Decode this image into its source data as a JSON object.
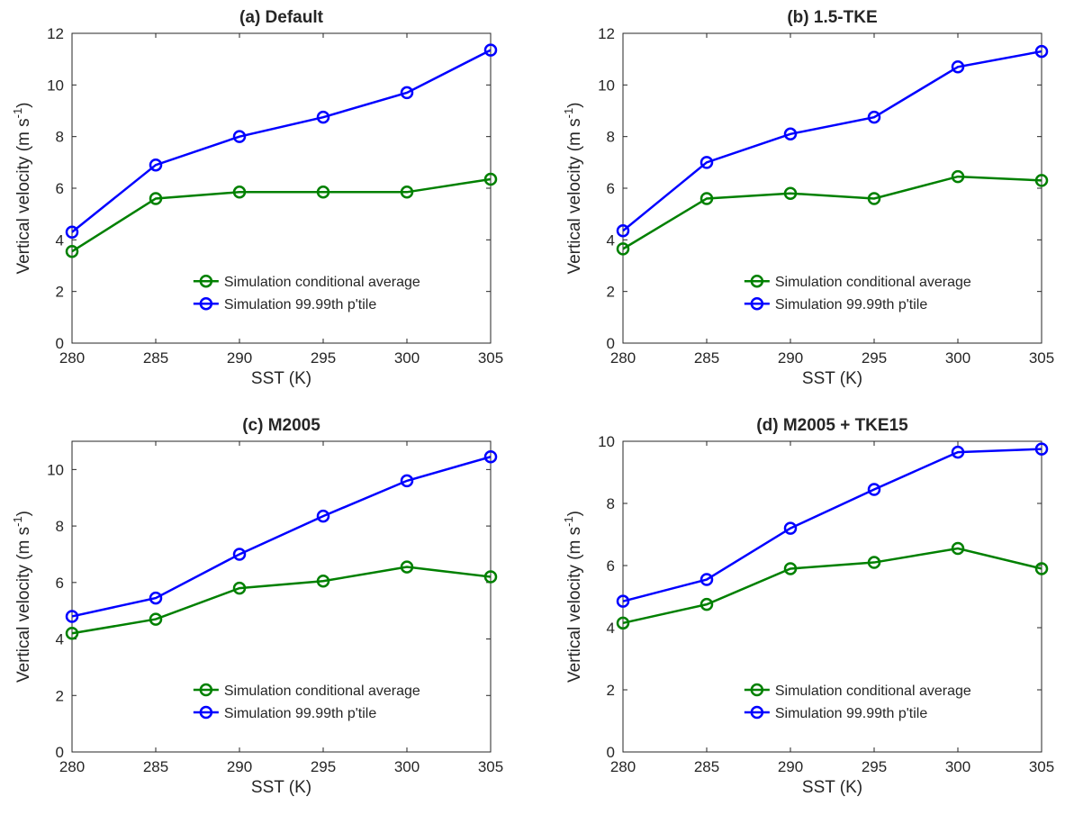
{
  "chart_data": [
    {
      "type": "line",
      "title": "(a) Default",
      "xlabel": "SST (K)",
      "ylabel": "Vertical velocity (m s",
      "ylabel_sup": "-1",
      "ylabel_tail": ")",
      "xlim": [
        280,
        305
      ],
      "ylim": [
        0,
        12
      ],
      "xticks": [
        280,
        285,
        290,
        295,
        300,
        305
      ],
      "yticks": [
        0,
        2,
        4,
        6,
        8,
        10,
        12
      ],
      "x": [
        280,
        285,
        290,
        295,
        300,
        305
      ],
      "series": [
        {
          "name": "Simulation conditional average",
          "color": "#008000",
          "values": [
            3.55,
            5.6,
            5.85,
            5.85,
            5.85,
            6.35
          ]
        },
        {
          "name": "Simulation 99.99th p'tile",
          "color": "#0000ff",
          "values": [
            4.3,
            6.9,
            8.0,
            8.75,
            9.7,
            11.35
          ]
        }
      ],
      "legend_position": "lower-right"
    },
    {
      "type": "line",
      "title": "(b) 1.5-TKE",
      "xlabel": "SST (K)",
      "ylabel": "Vertical velocity (m s",
      "ylabel_sup": "-1",
      "ylabel_tail": ")",
      "xlim": [
        280,
        305
      ],
      "ylim": [
        0,
        12
      ],
      "xticks": [
        280,
        285,
        290,
        295,
        300,
        305
      ],
      "yticks": [
        0,
        2,
        4,
        6,
        8,
        10,
        12
      ],
      "x": [
        280,
        285,
        290,
        295,
        300,
        305
      ],
      "series": [
        {
          "name": "Simulation conditional average",
          "color": "#008000",
          "values": [
            3.65,
            5.6,
            5.8,
            5.6,
            6.45,
            6.3
          ]
        },
        {
          "name": "Simulation 99.99th p'tile",
          "color": "#0000ff",
          "values": [
            4.35,
            7.0,
            8.1,
            8.75,
            10.7,
            11.3
          ]
        }
      ],
      "legend_position": "lower-right"
    },
    {
      "type": "line",
      "title": "(c) M2005",
      "xlabel": "SST (K)",
      "ylabel": "Vertical velocity (m s",
      "ylabel_sup": "-1",
      "ylabel_tail": ")",
      "xlim": [
        280,
        305
      ],
      "ylim": [
        0,
        11
      ],
      "xticks": [
        280,
        285,
        290,
        295,
        300,
        305
      ],
      "yticks": [
        0,
        2,
        4,
        6,
        8,
        10
      ],
      "x": [
        280,
        285,
        290,
        295,
        300,
        305
      ],
      "series": [
        {
          "name": "Simulation conditional average",
          "color": "#008000",
          "values": [
            4.2,
            4.7,
            5.8,
            6.05,
            6.55,
            6.2
          ]
        },
        {
          "name": "Simulation 99.99th p'tile",
          "color": "#0000ff",
          "values": [
            4.8,
            5.45,
            7.0,
            8.35,
            9.6,
            10.45
          ]
        }
      ],
      "legend_position": "lower-right"
    },
    {
      "type": "line",
      "title": "(d) M2005 + TKE15",
      "xlabel": "SST (K)",
      "ylabel": "Vertical velocity (m s",
      "ylabel_sup": "-1",
      "ylabel_tail": ")",
      "xlim": [
        280,
        305
      ],
      "ylim": [
        0,
        10
      ],
      "xticks": [
        280,
        285,
        290,
        295,
        300,
        305
      ],
      "yticks": [
        0,
        2,
        4,
        6,
        8,
        10
      ],
      "x": [
        280,
        285,
        290,
        295,
        300,
        305
      ],
      "series": [
        {
          "name": "Simulation conditional average",
          "color": "#008000",
          "values": [
            4.15,
            4.75,
            5.9,
            6.1,
            6.55,
            5.9
          ]
        },
        {
          "name": "Simulation 99.99th p'tile",
          "color": "#0000ff",
          "values": [
            4.85,
            5.55,
            7.2,
            8.45,
            9.65,
            9.75
          ]
        }
      ],
      "legend_position": "lower-right"
    }
  ]
}
